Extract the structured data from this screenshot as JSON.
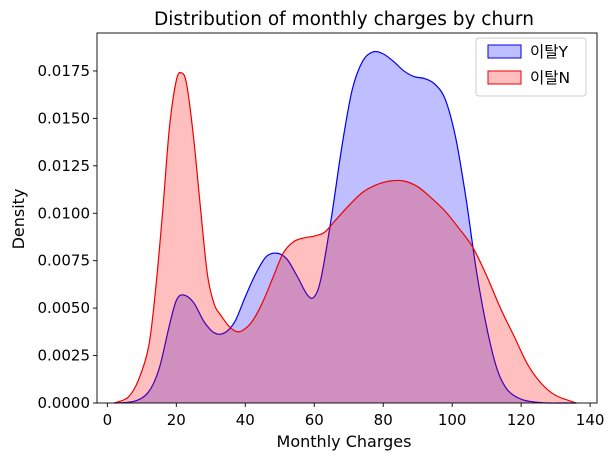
{
  "chart_data": {
    "type": "area",
    "title": "Distribution of monthly charges by churn",
    "xlabel": "Monthly Charges",
    "ylabel": "Density",
    "xlim": [
      -3,
      142
    ],
    "ylim": [
      0,
      0.0195
    ],
    "xticks": [
      "0",
      "20",
      "40",
      "60",
      "80",
      "100",
      "120",
      "140"
    ],
    "yticks": [
      "0.0000",
      "0.0025",
      "0.0050",
      "0.0075",
      "0.0100",
      "0.0125",
      "0.0150",
      "0.0175"
    ],
    "legend_position": "top-right",
    "series": [
      {
        "name": "이탈Y",
        "color": "#0000ee",
        "fill": "#0000ff",
        "x": [
          2,
          8,
          12,
          15,
          18,
          20,
          22,
          25,
          28,
          31,
          34,
          37,
          40,
          43,
          46,
          49,
          52,
          55,
          58,
          60,
          62,
          65,
          68,
          71,
          74,
          77,
          80,
          83,
          86,
          89,
          92,
          95,
          98,
          101,
          104,
          107,
          110,
          113,
          116,
          120,
          124,
          128,
          132,
          136
        ],
        "y": [
          0.0,
          0.0001,
          0.0006,
          0.0018,
          0.0041,
          0.0054,
          0.0057,
          0.0053,
          0.0043,
          0.0037,
          0.0037,
          0.0043,
          0.0056,
          0.0068,
          0.0077,
          0.0079,
          0.0076,
          0.0067,
          0.0057,
          0.0056,
          0.0066,
          0.0098,
          0.0135,
          0.0165,
          0.018,
          0.0185,
          0.0184,
          0.018,
          0.0175,
          0.0172,
          0.0171,
          0.0168,
          0.016,
          0.014,
          0.0108,
          0.007,
          0.004,
          0.0018,
          0.0007,
          0.0002,
          5e-05,
          0.0,
          0.0,
          0.0
        ]
      },
      {
        "name": "이탈N",
        "color": "#ee0000",
        "fill": "#ff0000",
        "x": [
          2,
          6,
          9,
          12,
          14,
          16,
          18,
          20,
          21.5,
          23,
          25,
          27,
          29,
          31,
          33,
          35,
          37,
          39,
          42,
          45,
          48,
          51,
          54,
          57,
          60,
          63,
          66,
          70,
          74,
          78,
          82,
          86,
          90,
          94,
          98,
          102,
          106,
          110,
          114,
          118,
          122,
          126,
          130,
          136
        ],
        "y": [
          0.0,
          0.0003,
          0.0012,
          0.003,
          0.006,
          0.01,
          0.0145,
          0.017,
          0.0174,
          0.0168,
          0.014,
          0.0103,
          0.0068,
          0.0052,
          0.0046,
          0.0041,
          0.0038,
          0.0038,
          0.0043,
          0.0053,
          0.0066,
          0.0079,
          0.0085,
          0.0087,
          0.0088,
          0.009,
          0.0096,
          0.0104,
          0.0111,
          0.0115,
          0.0117,
          0.0117,
          0.0114,
          0.0108,
          0.0101,
          0.0092,
          0.0082,
          0.0067,
          0.005,
          0.0035,
          0.002,
          0.001,
          0.0004,
          0.0
        ]
      }
    ]
  }
}
